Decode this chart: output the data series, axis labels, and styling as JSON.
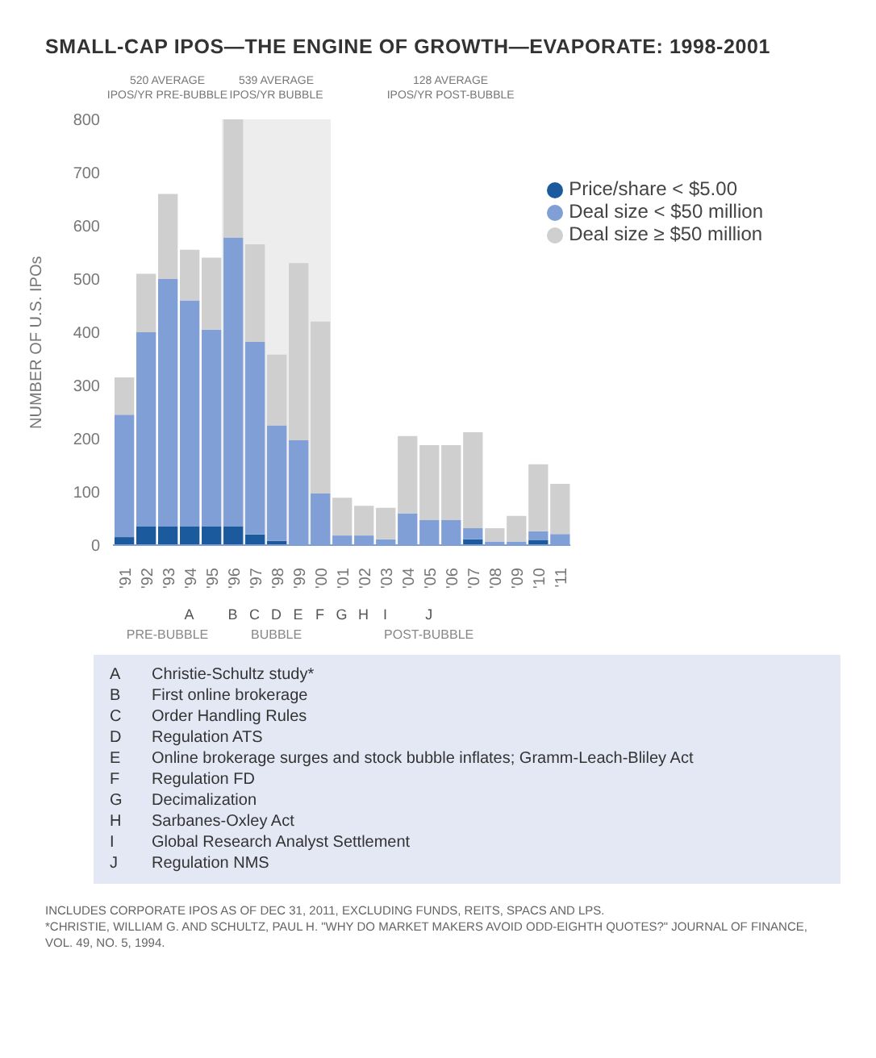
{
  "chart_data": {
    "type": "bar",
    "stacked": true,
    "title": "SMALL-CAP IPOS—THE ENGINE OF GROWTH—EVAPORATE: 1998-2001",
    "ylabel": "NUMBER OF U.S. IPOs",
    "categories": [
      "'91",
      "'92",
      "'93",
      "'94",
      "'95",
      "'96",
      "'97",
      "'98",
      "'99",
      "'00",
      "'01",
      "'02",
      "'03",
      "'04",
      "'05",
      "'06",
      "'07",
      "'08",
      "'09",
      "'10",
      "'11"
    ],
    "series": [
      {
        "name": "Price/share < $5.00",
        "color": "#1b5a9c",
        "values": [
          15,
          35,
          35,
          35,
          35,
          35,
          20,
          8,
          0,
          0,
          0,
          0,
          0,
          0,
          0,
          0,
          11,
          0,
          0,
          9,
          0
        ]
      },
      {
        "name": "Deal size < $50 million",
        "color": "#7f9fd6",
        "values": [
          230,
          365,
          465,
          425,
          370,
          543,
          362,
          217,
          197,
          97,
          18,
          18,
          11,
          60,
          47,
          47,
          21,
          7,
          7,
          17,
          21
        ]
      },
      {
        "name": "Deal size ≥ $50 million",
        "color": "#cfcfcf",
        "values": [
          70,
          110,
          160,
          95,
          135,
          222,
          183,
          133,
          333,
          323,
          71,
          56,
          59,
          145,
          141,
          141,
          180,
          25,
          48,
          126,
          94
        ]
      }
    ],
    "ylim": [
      0,
      800
    ],
    "yticks": [
      0,
      100,
      200,
      300,
      400,
      500,
      600,
      700,
      800
    ],
    "grid": false,
    "legend": "top right",
    "bands": [
      {
        "axis": "x",
        "from": "'96",
        "to": "'00",
        "color": "#ededed"
      }
    ],
    "annotations": [
      "520 AVERAGE IPOS/YR PRE-BUBBLE",
      "539 AVERAGE IPOS/YR BUBBLE",
      "128 AVERAGE IPOS/YR POST-BUBBLE",
      "A",
      "B",
      "C",
      "D",
      "E",
      "F",
      "G",
      "H",
      "I",
      "J",
      "PRE-BUBBLE",
      "BUBBLE",
      "POST-BUBBLE",
      "A Christie-Schultz study*",
      "B First online brokerage",
      "C Order Handling Rules",
      "D Regulation ATS",
      "E Online brokerage surges and stock bubble inflates; Gramm-Leach-Bliley Act",
      "F Regulation FD",
      "G Decimalization",
      "H Sarbanes-Oxley Act",
      "I Global Research Analyst Settlement",
      "J Regulation NMS",
      "INCLUDES CORPORATE IPOS AS OF DEC 31, 2011, EXCLUDING FUNDS, REITS, SPACS AND LPS.",
      "*CHRISTIE, WILLIAM G. AND SCHULTZ, PAUL H. \"WHY DO MARKET MAKERS AVOID ODD-EIGHTH QUOTES?\" JOURNAL OF FINANCE, VOL. 49, NO. 5, 1994."
    ]
  }
}
